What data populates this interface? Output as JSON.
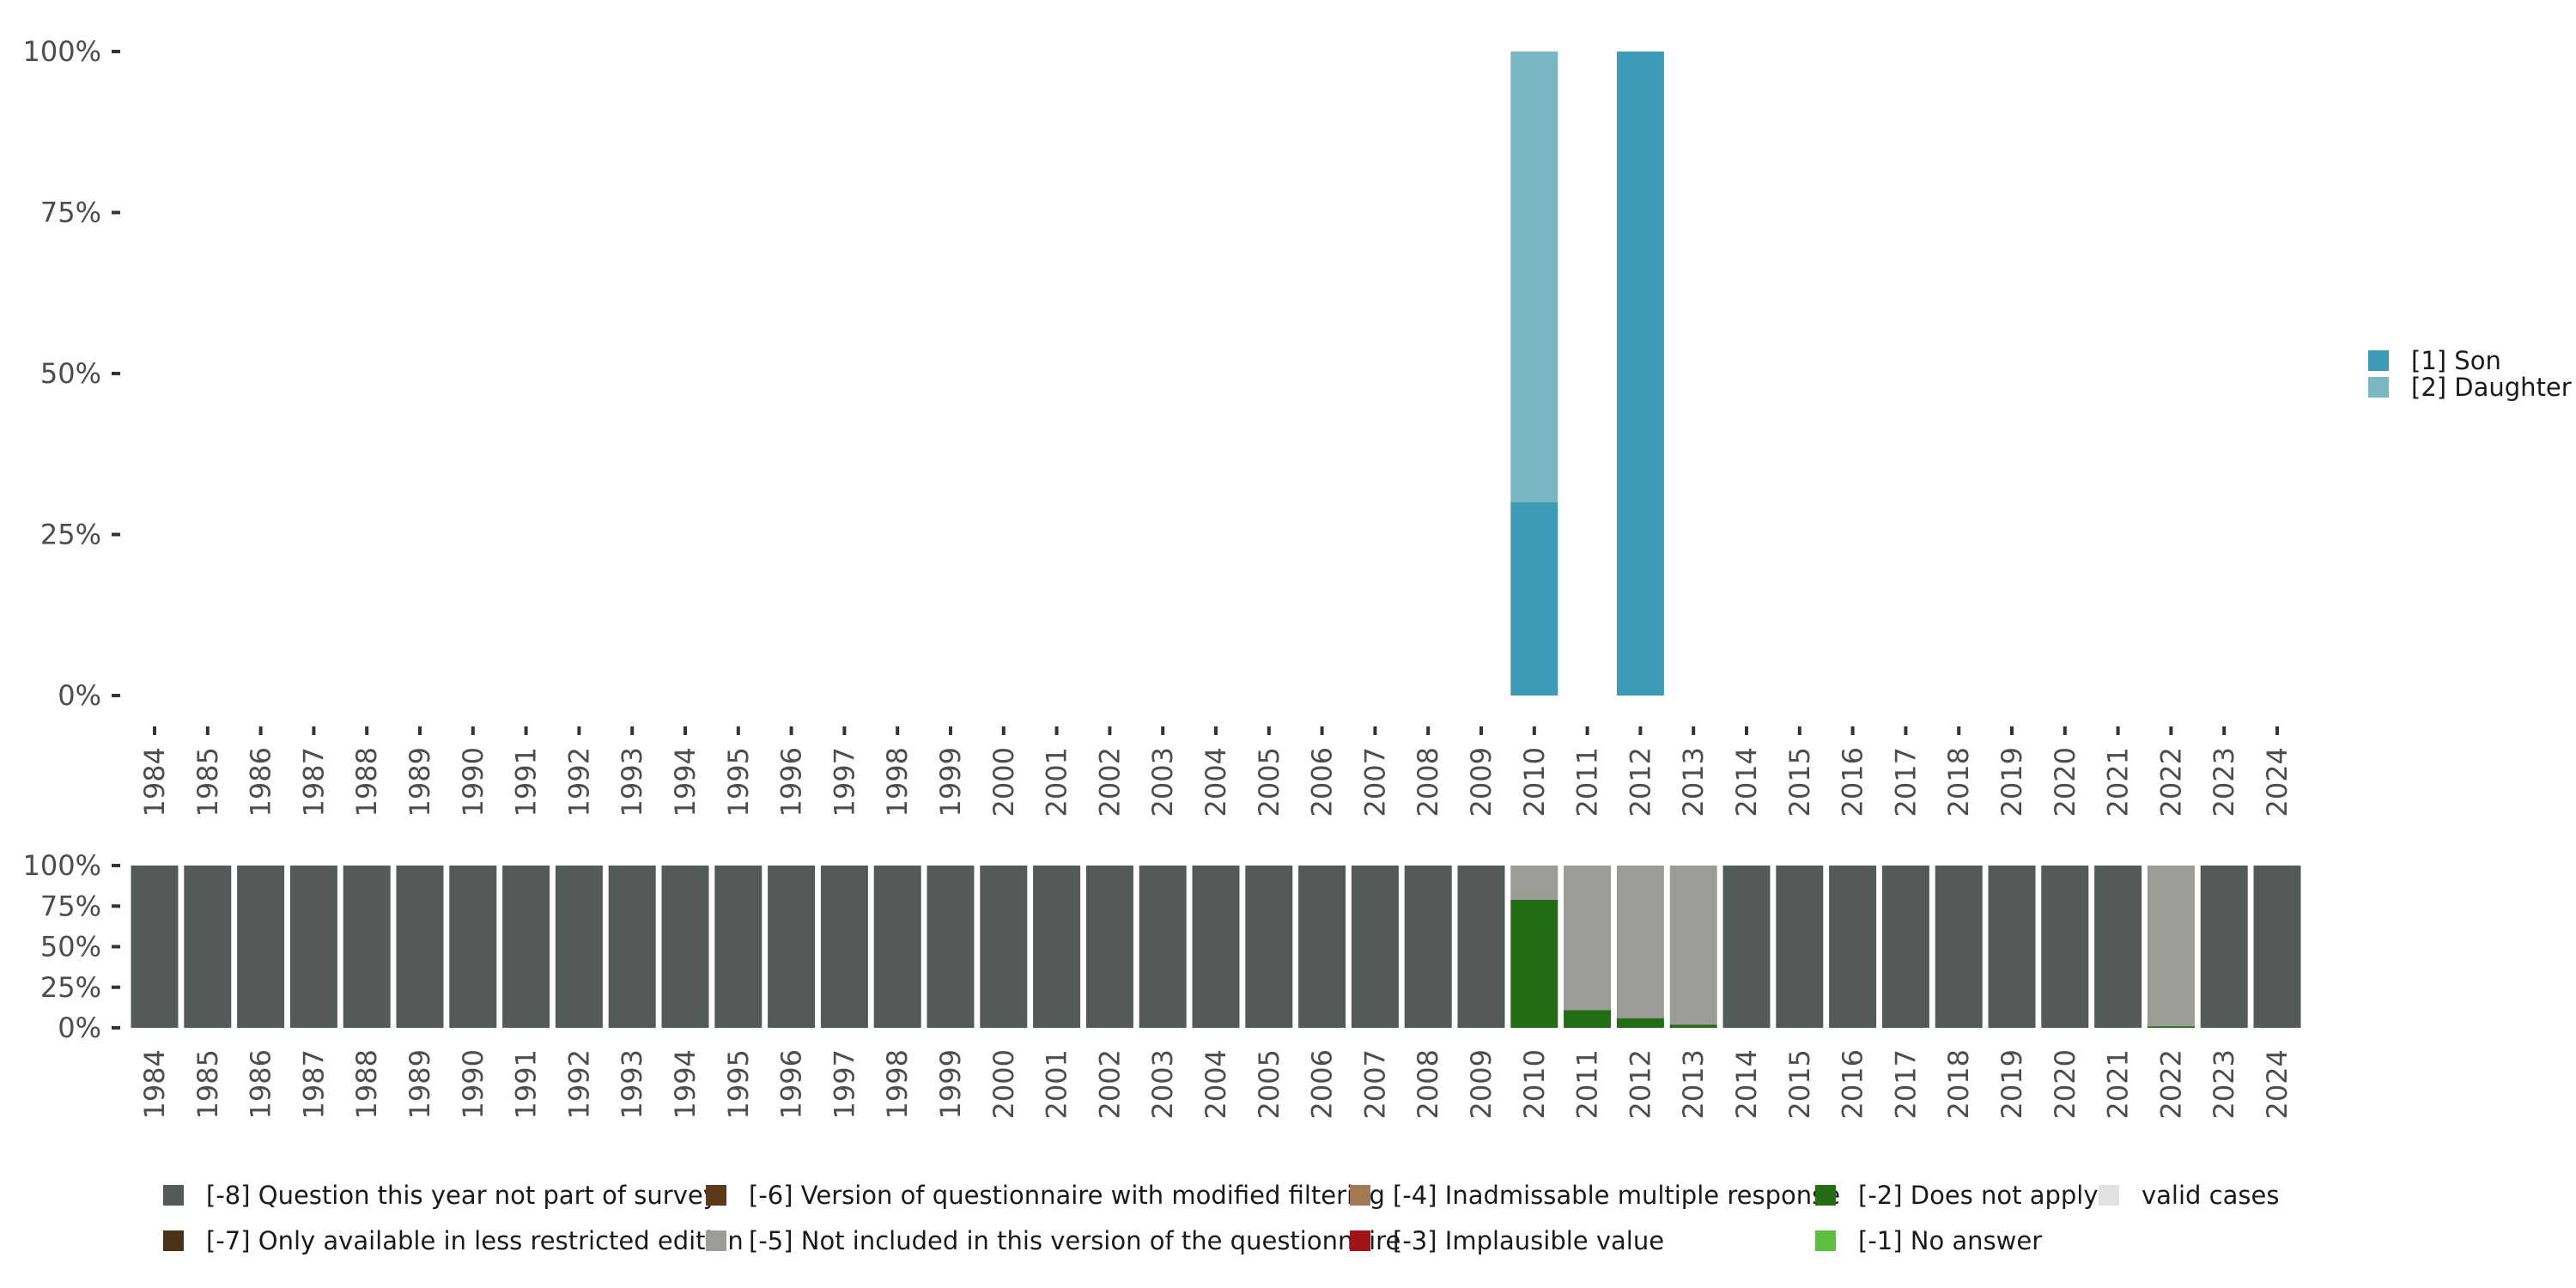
{
  "chart_data": [
    {
      "id": "main",
      "type": "bar",
      "stacked": true,
      "categories": [
        "1984",
        "1985",
        "1986",
        "1987",
        "1988",
        "1989",
        "1990",
        "1991",
        "1992",
        "1993",
        "1994",
        "1995",
        "1996",
        "1997",
        "1998",
        "1999",
        "2000",
        "2001",
        "2002",
        "2003",
        "2004",
        "2005",
        "2006",
        "2007",
        "2008",
        "2009",
        "2010",
        "2011",
        "2012",
        "2013",
        "2014",
        "2015",
        "2016",
        "2017",
        "2018",
        "2019",
        "2020",
        "2021",
        "2022",
        "2023",
        "2024"
      ],
      "y_ticks": [
        "0%",
        "25%",
        "50%",
        "75%",
        "100%"
      ],
      "ylim": [
        0,
        100
      ],
      "grid": false,
      "legend_position": "right",
      "series": [
        {
          "name": "[1] Son",
          "color": "#3e9bb5",
          "values": {
            "2010": 30,
            "2012": 100
          }
        },
        {
          "name": "[2] Daughter",
          "color": "#79b7c5",
          "values": {
            "2010": 70,
            "2012": 0
          }
        }
      ]
    },
    {
      "id": "missing",
      "type": "bar",
      "stacked": true,
      "categories": [
        "1984",
        "1985",
        "1986",
        "1987",
        "1988",
        "1989",
        "1990",
        "1991",
        "1992",
        "1993",
        "1994",
        "1995",
        "1996",
        "1997",
        "1998",
        "1999",
        "2000",
        "2001",
        "2002",
        "2003",
        "2004",
        "2005",
        "2006",
        "2007",
        "2008",
        "2009",
        "2010",
        "2011",
        "2012",
        "2013",
        "2014",
        "2015",
        "2016",
        "2017",
        "2018",
        "2019",
        "2020",
        "2021",
        "2022",
        "2023",
        "2024"
      ],
      "y_ticks": [
        "0%",
        "25%",
        "50%",
        "75%",
        "100%"
      ],
      "ylim": [
        0,
        100
      ],
      "grid": false,
      "legend_position": "bottom",
      "legend_order": [
        "-8",
        "-6",
        "-4",
        "-2",
        "valid",
        "-7",
        "-5",
        "-3",
        "-1"
      ],
      "series": [
        {
          "code": "-8",
          "name": "[-8] Question this year not part of survey",
          "color": "#545b57"
        },
        {
          "code": "-7",
          "name": "[-7] Only available in less restricted edition",
          "color": "#4a3119"
        },
        {
          "code": "-6",
          "name": "[-6] Version of questionnaire with modified filtering",
          "color": "#5a3a1a"
        },
        {
          "code": "-5",
          "name": "[-5] Not included in this version of the questionnaire",
          "color": "#999d96"
        },
        {
          "code": "-4",
          "name": "[-4] Inadmissable multiple response",
          "color": "#a07a55"
        },
        {
          "code": "-3",
          "name": "[-3] Implausible value",
          "color": "#a01414"
        },
        {
          "code": "-2",
          "name": "[-2] Does not apply",
          "color": "#246d14"
        },
        {
          "code": "-1",
          "name": "[-1] No answer",
          "color": "#5cbf3f"
        },
        {
          "code": "valid",
          "name": "valid cases",
          "color": "#e0e2dd"
        }
      ],
      "stacks": {
        "2010": [
          {
            "code": "-2",
            "value": 79
          },
          {
            "code": "-5",
            "value": 21
          }
        ],
        "2011": [
          {
            "code": "-2",
            "value": 11
          },
          {
            "code": "-5",
            "value": 89
          }
        ],
        "2012": [
          {
            "code": "-2",
            "value": 6
          },
          {
            "code": "-5",
            "value": 94
          }
        ],
        "2013": [
          {
            "code": "-2",
            "value": 2
          },
          {
            "code": "-5",
            "value": 98
          }
        ],
        "2022": [
          {
            "code": "-2",
            "value": 1
          },
          {
            "code": "-5",
            "value": 99
          }
        ]
      },
      "default_stack": [
        {
          "code": "-8",
          "value": 100
        }
      ]
    }
  ]
}
